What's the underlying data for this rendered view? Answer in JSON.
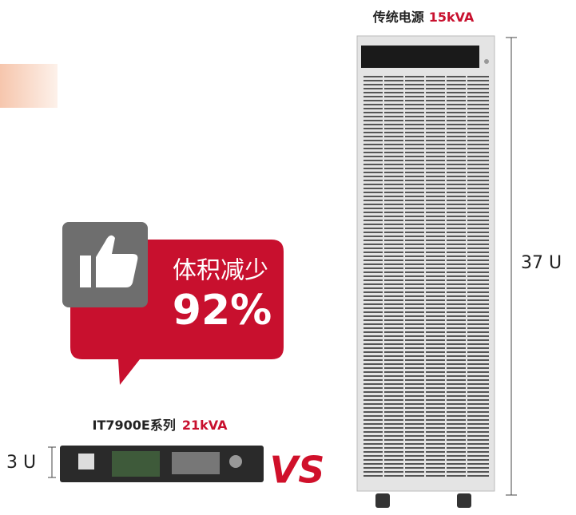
{
  "legacy": {
    "label": "传统电源",
    "power": "15kVA",
    "height": "37 U"
  },
  "badge": {
    "label": "体积减少",
    "value": "92%"
  },
  "product": {
    "label": "IT7900E系列",
    "power": "21kVA",
    "height": "3 U"
  },
  "versus": "VS"
}
